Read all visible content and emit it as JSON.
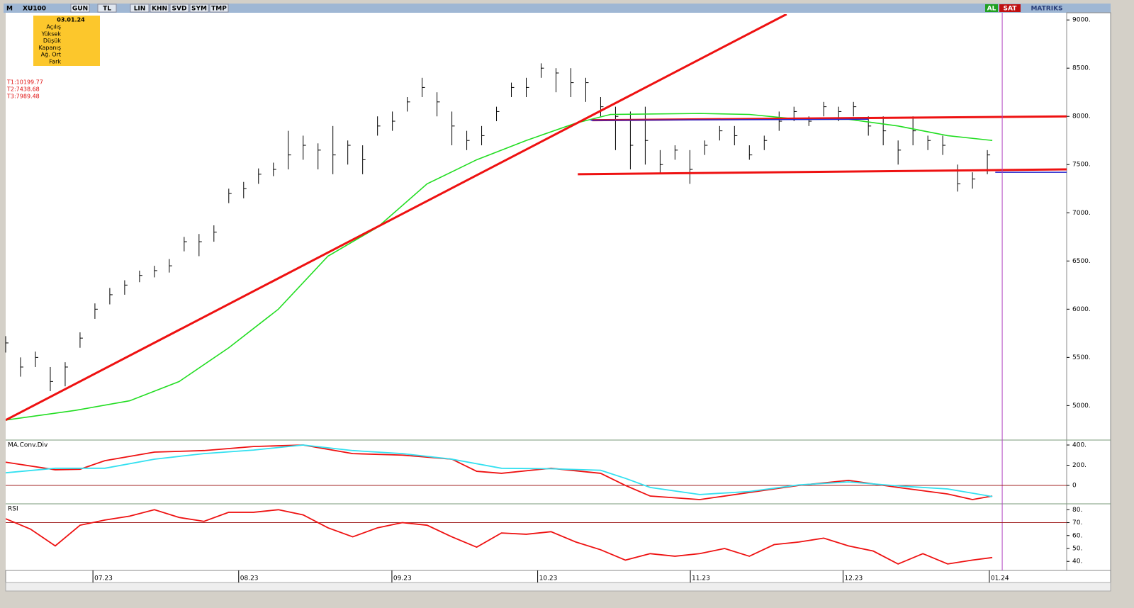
{
  "toolbar": {
    "symbol_menu": "M",
    "symbol": "XU100",
    "items": [
      "GUN",
      "TL",
      "LIN",
      "KHN",
      "SVD",
      "SYM",
      "TMP"
    ],
    "buy": "AL",
    "sell": "SAT",
    "brand": "MATRIKS"
  },
  "info_box": {
    "date": "03.01.24",
    "fields": [
      "Açılış",
      "Yüksek",
      "Düşük",
      "Kapanış",
      "Ağ. Ort",
      "Fark"
    ]
  },
  "chart_data": [
    {
      "type": "ohlc",
      "annotations": [
        "T1:10199.77",
        "T2:7438.68",
        "T3:7989.48"
      ],
      "color": "#000000",
      "x": [
        0,
        3,
        6,
        9,
        12,
        15,
        18,
        21,
        24,
        27,
        30,
        33,
        36,
        39,
        42,
        45,
        48,
        51,
        54,
        57,
        60,
        63,
        66,
        69,
        72,
        75,
        78,
        81,
        84,
        87,
        90,
        93,
        96,
        99,
        102,
        105,
        108,
        111,
        114,
        117,
        120,
        123,
        126,
        129,
        132,
        135,
        138,
        141,
        144,
        147,
        150,
        153,
        156,
        159,
        162,
        165,
        168,
        171,
        174,
        177,
        180,
        183,
        186,
        189,
        192,
        195,
        198
      ],
      "high": [
        5720,
        5500,
        5560,
        5400,
        5450,
        5760,
        6060,
        6220,
        6300,
        6400,
        6450,
        6520,
        6750,
        6780,
        6870,
        7250,
        7320,
        7460,
        7520,
        7850,
        7800,
        7720,
        7900,
        7750,
        7700,
        8000,
        8050,
        8200,
        8400,
        8250,
        8050,
        7850,
        7900,
        8100,
        8350,
        8400,
        8550,
        8500,
        8500,
        8400,
        8200,
        8100,
        8050,
        8100,
        7650,
        7700,
        7650,
        7750,
        7900,
        7900,
        7700,
        7800,
        8050,
        8100,
        8000,
        8150,
        8100,
        8150,
        8000,
        8000,
        7750,
        8000,
        7800,
        7800,
        7500,
        7420,
        7650
      ],
      "low": [
        5550,
        5300,
        5400,
        5150,
        5200,
        5600,
        5900,
        6050,
        6150,
        6280,
        6330,
        6380,
        6600,
        6550,
        6700,
        7100,
        7150,
        7300,
        7380,
        7450,
        7550,
        7450,
        7400,
        7500,
        7400,
        7800,
        7850,
        8050,
        8200,
        8000,
        7700,
        7650,
        7700,
        7950,
        8200,
        8200,
        8400,
        8250,
        8200,
        8150,
        8000,
        7650,
        7450,
        7500,
        7400,
        7550,
        7300,
        7600,
        7750,
        7700,
        7550,
        7650,
        7850,
        7950,
        7900,
        8000,
        7950,
        8000,
        7800,
        7700,
        7500,
        7700,
        7650,
        7600,
        7220,
        7250,
        7400
      ],
      "close": [
        5650,
        5400,
        5500,
        5250,
        5400,
        5700,
        6000,
        6150,
        6250,
        6350,
        6400,
        6450,
        6700,
        6700,
        6800,
        7200,
        7250,
        7400,
        7450,
        7600,
        7700,
        7650,
        7600,
        7700,
        7550,
        7900,
        7950,
        8150,
        8300,
        8150,
        7900,
        7750,
        7800,
        8050,
        8300,
        8300,
        8500,
        8450,
        8350,
        8350,
        8100,
        8000,
        7700,
        7750,
        7500,
        7650,
        7450,
        7700,
        7850,
        7800,
        7600,
        7750,
        7950,
        8050,
        7950,
        8100,
        8050,
        8100,
        7900,
        7850,
        7650,
        7850,
        7750,
        7700,
        7300,
        7350,
        7600
      ],
      "series": [
        {
          "color": "#22dd22",
          "x": [
            0,
            14,
            25,
            35,
            45,
            55,
            65,
            75,
            85,
            95,
            105,
            115,
            122,
            140,
            150,
            160,
            170,
            180,
            190,
            199
          ],
          "values": [
            4850,
            4950,
            5050,
            5250,
            5600,
            6000,
            6550,
            6850,
            7300,
            7550,
            7750,
            7930,
            8020,
            8030,
            8020,
            7970,
            7970,
            7900,
            7800,
            7750
          ]
        }
      ],
      "lines": [
        {
          "color": "#ee1111",
          "x": [
            0,
            157.5
          ],
          "values": [
            4850,
            9060
          ]
        },
        {
          "color": "#ee1111",
          "x": [
            118.3,
            214
          ],
          "values": [
            7960,
            8000
          ]
        },
        {
          "color": "#ee1111",
          "x": [
            115.4,
            214
          ],
          "values": [
            7400,
            7450
          ]
        },
        {
          "color": "#2222cc",
          "x": [
            118,
            174
          ],
          "values": [
            7960,
            7970
          ]
        },
        {
          "color": "#2222cc",
          "x": [
            199.6,
            214
          ],
          "values": [
            7420,
            7420
          ]
        }
      ],
      "marker_x": 201,
      "xlim": [
        0,
        214
      ],
      "ylim": [
        4650,
        9060
      ],
      "xticks": [
        {
          "value": 17.6,
          "label": "07.23"
        },
        {
          "value": 47,
          "label": "08.23"
        },
        {
          "value": 77.9,
          "label": "09.23"
        },
        {
          "value": 107.3,
          "label": "10.23"
        },
        {
          "value": 138.1,
          "label": "11.23"
        },
        {
          "value": 168.9,
          "label": "12.23"
        },
        {
          "value": 198.4,
          "label": "01.24"
        }
      ],
      "yticks": [
        {
          "value": 5000,
          "label": "5000."
        },
        {
          "value": 5500,
          "label": "5500."
        },
        {
          "value": 6000,
          "label": "6000."
        },
        {
          "value": 6500,
          "label": "6500."
        },
        {
          "value": 7000,
          "label": "7000."
        },
        {
          "value": 7500,
          "label": "7500."
        },
        {
          "value": 8000,
          "label": "8000."
        },
        {
          "value": 8500,
          "label": "8500."
        },
        {
          "value": 9000,
          "label": "9000."
        }
      ]
    },
    {
      "type": "line",
      "title": "MA.Conv.Div",
      "xlim": [
        0,
        214
      ],
      "ylim": [
        -175,
        442
      ],
      "reference_line": 0,
      "yticks": [
        {
          "value": 0,
          "label": "0"
        },
        {
          "value": 200,
          "label": "200."
        },
        {
          "value": 400,
          "label": "400."
        }
      ],
      "series": [
        {
          "color": "#ee1111",
          "x": [
            0,
            10,
            15,
            20,
            30,
            40,
            50,
            60,
            70,
            80,
            90,
            95,
            100,
            110,
            120,
            125,
            130,
            140,
            150,
            160,
            170,
            180,
            190,
            195,
            199
          ],
          "values": [
            230,
            155,
            160,
            245,
            330,
            345,
            385,
            400,
            315,
            300,
            260,
            140,
            120,
            170,
            120,
            0,
            -105,
            -140,
            -70,
            0,
            50,
            -20,
            -85,
            -140,
            -105
          ]
        },
        {
          "color": "#33e0f0",
          "x": [
            0,
            10,
            20,
            30,
            40,
            50,
            60,
            70,
            80,
            90,
            100,
            110,
            120,
            125,
            130,
            140,
            150,
            160,
            170,
            180,
            190,
            199
          ],
          "values": [
            125,
            170,
            170,
            260,
            315,
            350,
            400,
            345,
            315,
            260,
            170,
            165,
            150,
            70,
            -20,
            -90,
            -60,
            5,
            35,
            -5,
            -35,
            -110
          ]
        }
      ]
    },
    {
      "type": "line",
      "title": "RSI",
      "xlim": [
        0,
        214
      ],
      "ylim": [
        33,
        84
      ],
      "reference_line": 70,
      "yticks": [
        {
          "value": 40,
          "label": "40."
        },
        {
          "value": 50,
          "label": "50."
        },
        {
          "value": 60,
          "label": "60."
        },
        {
          "value": 70,
          "label": "70."
        },
        {
          "value": 80,
          "label": "80."
        }
      ],
      "series": [
        {
          "color": "#ee1111",
          "x": [
            0,
            5,
            10,
            15,
            20,
            25,
            30,
            35,
            40,
            45,
            50,
            55,
            60,
            65,
            70,
            75,
            80,
            85,
            90,
            95,
            100,
            105,
            110,
            115,
            120,
            125,
            130,
            135,
            140,
            145,
            150,
            155,
            160,
            165,
            170,
            175,
            180,
            185,
            190,
            195,
            199
          ],
          "values": [
            73,
            65,
            52,
            68,
            72,
            75,
            80,
            74,
            71,
            78,
            78,
            80,
            76,
            66,
            59,
            66,
            70,
            68,
            59,
            51,
            62,
            61,
            63,
            55,
            49,
            41,
            46,
            44,
            46,
            50,
            44,
            53,
            55,
            58,
            52,
            48,
            38,
            46,
            38,
            41,
            43
          ]
        }
      ]
    }
  ]
}
